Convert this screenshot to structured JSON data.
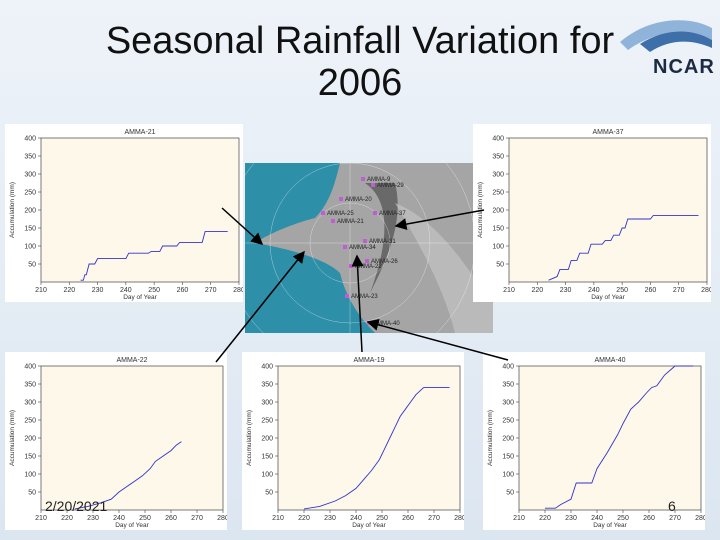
{
  "slide": {
    "title_line1": "Seasonal Rainfall Variation for",
    "title_line2": "2006",
    "logo_text": "NCAR",
    "date": "2/20/2021",
    "page_number": "6"
  },
  "colors": {
    "plot_bg": "#fdf8e9",
    "series": "#3333cc",
    "ocean": "#2e8fa8",
    "land": "#9a9a9a",
    "station": "#c35bd6"
  },
  "map": {
    "stations": [
      "AMMA-9",
      "AMMA-29",
      "AMMA-20",
      "AMMA-25",
      "AMMA-21",
      "AMMA-37",
      "AMMA-31",
      "AMMA-34",
      "AMMA-26",
      "AMMA-22",
      "AMMA-23",
      "AMMA-40"
    ]
  },
  "chart_data": [
    {
      "type": "line",
      "title": "AMMA-21",
      "xlabel": "Day of Year",
      "ylabel": "Accumulation (mm)",
      "xlim": [
        210,
        280
      ],
      "ylim": [
        0,
        400
      ],
      "xticks": [
        210,
        220,
        230,
        240,
        250,
        260,
        270,
        280
      ],
      "yticks": [
        50,
        100,
        150,
        200,
        250,
        300,
        350,
        400
      ],
      "series": [
        {
          "x": [
            224,
            225,
            225.5,
            226,
            227,
            229,
            230,
            231,
            240,
            241,
            248,
            249,
            252,
            253,
            258,
            259,
            267,
            268,
            276
          ],
          "y": [
            5,
            5,
            20,
            20,
            50,
            50,
            65,
            65,
            65,
            80,
            80,
            85,
            85,
            100,
            100,
            110,
            110,
            140,
            140
          ]
        }
      ]
    },
    {
      "type": "line",
      "title": "AMMA-37",
      "xlabel": "Day of Year",
      "ylabel": "Accumulation (mm)",
      "xlim": [
        210,
        280
      ],
      "ylim": [
        0,
        400
      ],
      "xticks": [
        210,
        220,
        230,
        240,
        250,
        260,
        270,
        280
      ],
      "yticks": [
        50,
        100,
        150,
        200,
        250,
        300,
        350,
        400
      ],
      "series": [
        {
          "x": [
            224,
            227,
            228,
            231,
            232,
            234,
            235,
            238,
            239,
            243,
            244,
            246,
            247,
            249,
            250,
            251,
            252,
            260,
            261,
            277
          ],
          "y": [
            5,
            15,
            35,
            35,
            60,
            60,
            80,
            80,
            105,
            105,
            115,
            115,
            130,
            130,
            150,
            150,
            175,
            175,
            185,
            185
          ]
        }
      ]
    },
    {
      "type": "line",
      "title": "AMMA-22",
      "xlabel": "Day of Year",
      "ylabel": "Accumulation (mm)",
      "xlim": [
        210,
        280
      ],
      "ylim": [
        0,
        400
      ],
      "xticks": [
        210,
        220,
        230,
        240,
        250,
        260,
        270,
        280
      ],
      "yticks": [
        50,
        100,
        150,
        200,
        250,
        300,
        350,
        400
      ],
      "series": [
        {
          "x": [
            223,
            228,
            233,
            237,
            240,
            243,
            246,
            249,
            252,
            254,
            257,
            260,
            262,
            264
          ],
          "y": [
            3,
            10,
            20,
            30,
            50,
            65,
            80,
            95,
            115,
            135,
            150,
            165,
            180,
            190
          ]
        }
      ]
    },
    {
      "type": "line",
      "title": "AMMA-19",
      "xlabel": "Day of Year",
      "ylabel": "Accumulation (mm)",
      "xlim": [
        210,
        280
      ],
      "ylim": [
        0,
        400
      ],
      "xticks": [
        210,
        220,
        230,
        240,
        250,
        260,
        270,
        280
      ],
      "yticks": [
        50,
        100,
        150,
        200,
        250,
        300,
        350,
        400
      ],
      "series": [
        {
          "x": [
            220,
            226,
            232,
            236,
            240,
            243,
            246,
            249,
            251,
            253,
            255,
            257,
            259,
            261,
            263,
            266,
            276
          ],
          "y": [
            3,
            10,
            25,
            40,
            60,
            85,
            110,
            140,
            170,
            200,
            230,
            260,
            280,
            300,
            320,
            340,
            340
          ]
        }
      ]
    },
    {
      "type": "line",
      "title": "AMMA-40",
      "xlabel": "Day of Year",
      "ylabel": "Accumulation (mm)",
      "xlim": [
        210,
        280
      ],
      "ylim": [
        0,
        400
      ],
      "xticks": [
        210,
        220,
        230,
        240,
        250,
        260,
        270,
        280
      ],
      "yticks": [
        50,
        100,
        150,
        200,
        250,
        300,
        350,
        400
      ],
      "series": [
        {
          "x": [
            220,
            224,
            226,
            230,
            232,
            238,
            240,
            244,
            248,
            250,
            253,
            256,
            259,
            261,
            263,
            266,
            270,
            277
          ],
          "y": [
            5,
            5,
            15,
            30,
            75,
            75,
            115,
            160,
            210,
            240,
            280,
            300,
            325,
            340,
            345,
            375,
            400,
            400
          ]
        }
      ]
    }
  ]
}
